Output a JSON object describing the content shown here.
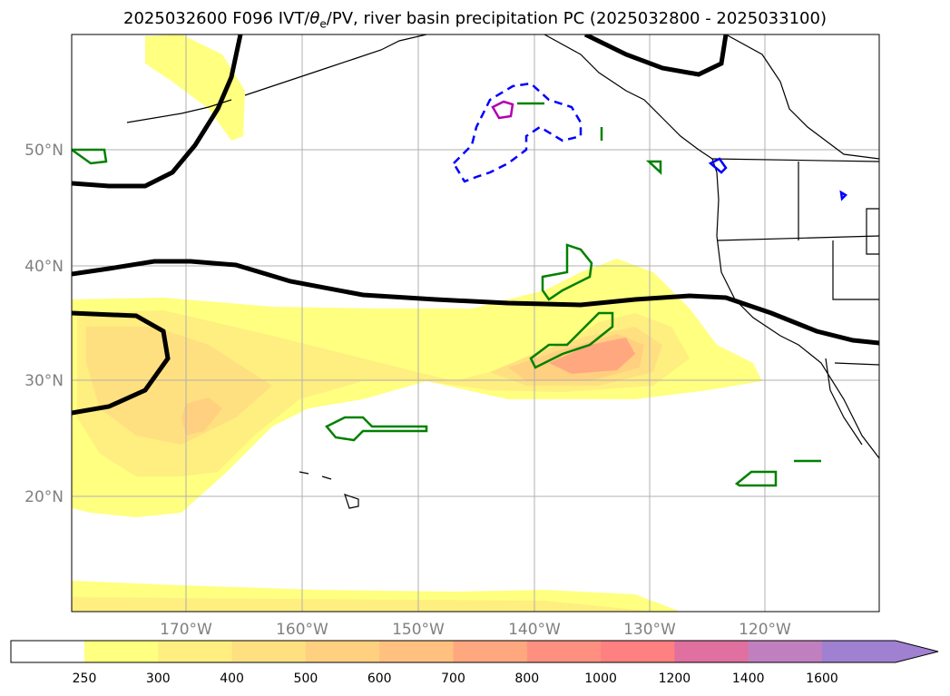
{
  "title": {
    "prefix": "2025032600 F096 IVT/",
    "theta": "θ",
    "theta_sub": "e",
    "suffix": "/PV, river basin precipitation PC (2025032800 - 2025033100)"
  },
  "map": {
    "lat_labels": [
      "50°N",
      "40°N",
      "30°N",
      "20°N"
    ],
    "lon_labels": [
      "170°W",
      "160°W",
      "150°W",
      "140°W",
      "130°W",
      "120°W"
    ],
    "gridlines": true,
    "axis_label_color": "#808080"
  },
  "colorbar": {
    "ticks": [
      "250",
      "300",
      "400",
      "500",
      "600",
      "700",
      "800",
      "1000",
      "1200",
      "1400",
      "1600"
    ],
    "colors": [
      "#ffff80",
      "#ffee80",
      "#ffe080",
      "#ffd080",
      "#ffc080",
      "#ffa880",
      "#ff9080",
      "#ff8080",
      "#e070a0",
      "#c080c0",
      "#a080d0"
    ],
    "extend": "max"
  }
}
